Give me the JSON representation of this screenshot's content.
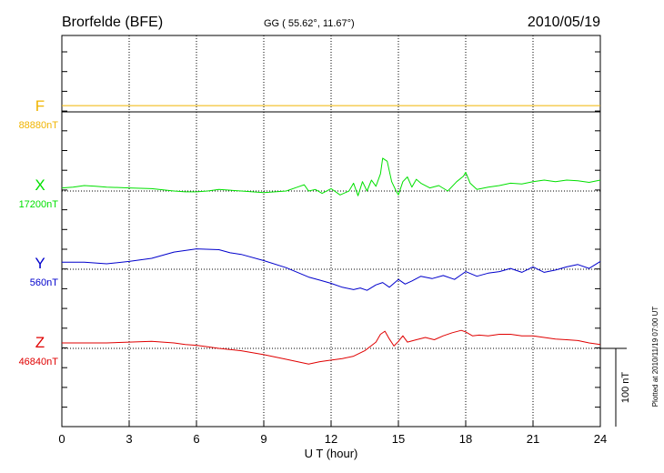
{
  "header": {
    "station": "Brorfelde (BFE)",
    "coords": "GG ( 55.62°,  11.67°)",
    "date": "2010/05/19"
  },
  "side_note": "Plotted at 2010/11/19 07:00 UT",
  "scale_label": "100 nT",
  "chart_data": {
    "type": "line",
    "xlabel": "U T (hour)",
    "xlim": [
      0,
      24
    ],
    "x_ticks": [
      "0",
      "3",
      "6",
      "9",
      "12",
      "15",
      "18",
      "21",
      "24"
    ],
    "scale_bar_nT": 100,
    "colors": {
      "F": "#f0b400",
      "X": "#00e000",
      "Y": "#0000cc",
      "Z": "#e00000"
    },
    "series": [
      {
        "name": "F",
        "baseline_label": "88880nT",
        "baseline": 88880,
        "x": [
          0,
          3,
          6,
          9,
          12,
          15,
          18,
          21,
          24
        ],
        "y": [
          88888,
          88888,
          88888,
          88888,
          88888,
          88888,
          88888,
          88888,
          88888
        ]
      },
      {
        "name": "X",
        "baseline_label": "17200nT",
        "baseline": 17200,
        "x": [
          0,
          0.5,
          1,
          1.5,
          2,
          3,
          4,
          5,
          5.5,
          6,
          6.5,
          7,
          8,
          9,
          10,
          10.5,
          10.8,
          11,
          11.3,
          11.6,
          12,
          12.4,
          12.8,
          13.0,
          13.2,
          13.4,
          13.6,
          13.8,
          14.0,
          14.2,
          14.3,
          14.5,
          14.7,
          14.9,
          15.0,
          15.2,
          15.4,
          15.6,
          15.8,
          16.0,
          16.4,
          16.8,
          17.2,
          17.6,
          17.9,
          18.0,
          18.2,
          18.5,
          19,
          19.5,
          20,
          20.5,
          21,
          21.5,
          22,
          22.5,
          23,
          23.5,
          24
        ],
        "y": [
          17204,
          17205,
          17207,
          17206,
          17205,
          17204,
          17203,
          17200,
          17199,
          17199,
          17200,
          17202,
          17200,
          17198,
          17200,
          17205,
          17208,
          17200,
          17202,
          17197,
          17203,
          17195,
          17200,
          17210,
          17194,
          17212,
          17200,
          17214,
          17206,
          17222,
          17242,
          17238,
          17212,
          17200,
          17195,
          17212,
          17218,
          17205,
          17215,
          17210,
          17204,
          17207,
          17200,
          17212,
          17219,
          17224,
          17210,
          17202,
          17205,
          17207,
          17210,
          17209,
          17212,
          17214,
          17212,
          17214,
          17213,
          17211,
          17214
        ]
      },
      {
        "name": "Y",
        "baseline_label": "560nT",
        "baseline": 560,
        "x": [
          0,
          1,
          2,
          3,
          4,
          5,
          6,
          7,
          7.5,
          8,
          9,
          10,
          10.5,
          11,
          11.5,
          12,
          12.5,
          13,
          13.3,
          13.6,
          14,
          14.3,
          14.6,
          15,
          15.3,
          15.6,
          16,
          16.5,
          17,
          17.5,
          18,
          18.5,
          19,
          19.5,
          20,
          20.5,
          21,
          21.5,
          22,
          22.5,
          23,
          23.5,
          24
        ],
        "y": [
          569,
          569,
          567,
          570,
          574,
          582,
          586,
          585,
          581,
          579,
          571,
          562,
          556,
          550,
          546,
          542,
          537,
          534,
          536,
          533,
          540,
          543,
          537,
          547,
          541,
          545,
          551,
          548,
          552,
          547,
          557,
          551,
          555,
          557,
          561,
          556,
          563,
          556,
          559,
          563,
          566,
          561,
          570
        ]
      },
      {
        "name": "Z",
        "baseline_label": "46840nT",
        "baseline": 46840,
        "x": [
          0,
          1,
          2,
          3,
          4,
          4.5,
          5,
          5.5,
          6,
          6.5,
          7,
          8,
          9,
          10,
          10.5,
          11,
          11.5,
          12,
          12.5,
          13,
          13.5,
          14,
          14.2,
          14.4,
          14.6,
          14.8,
          15.0,
          15.2,
          15.4,
          15.8,
          16.2,
          16.6,
          17.0,
          17.4,
          17.8,
          18.0,
          18.3,
          18.6,
          19,
          19.5,
          20,
          20.5,
          21,
          21.5,
          22,
          22.5,
          23,
          23.5,
          24
        ],
        "y": [
          46847,
          46847,
          46847,
          46848,
          46849,
          46848,
          46847,
          46845,
          46844,
          46842,
          46840,
          46837,
          46832,
          46826,
          46823,
          46820,
          46823,
          46825,
          46827,
          46830,
          46837,
          46848,
          46858,
          46862,
          46852,
          46843,
          46849,
          46856,
          46848,
          46851,
          46854,
          46851,
          46856,
          46860,
          46863,
          46861,
          46856,
          46857,
          46856,
          46858,
          46858,
          46856,
          46856,
          46854,
          46852,
          46851,
          46850,
          46847,
          46845
        ]
      }
    ]
  }
}
